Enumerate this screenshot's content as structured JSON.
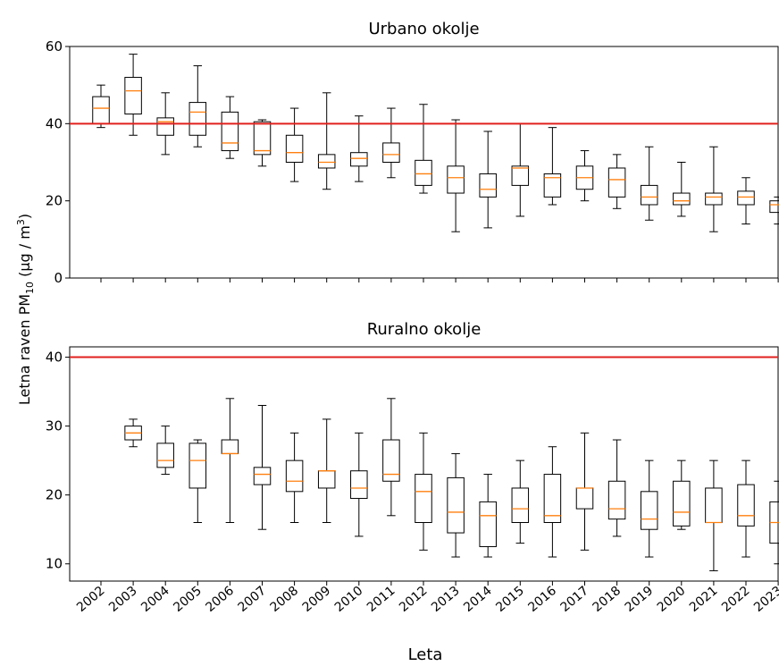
{
  "chart_data": [
    {
      "type": "box",
      "title": "Urbano okolje",
      "ylim": [
        0,
        60
      ],
      "yticks": [
        0,
        20,
        40,
        60
      ],
      "reference_line": {
        "value": 40,
        "color": "#e0201e"
      },
      "median_color": "#ff7f0e",
      "years": [
        "2002",
        "2003",
        "2004",
        "2005",
        "2006",
        "2007",
        "2008",
        "2009",
        "2010",
        "2011",
        "2012",
        "2013",
        "2014",
        "2015",
        "2016",
        "2017",
        "2018",
        "2019",
        "2020",
        "2021",
        "2022",
        "2023"
      ],
      "boxes": [
        {
          "year": "2002",
          "min": 39,
          "q1": 40,
          "median": 44,
          "q3": 47,
          "max": 50
        },
        {
          "year": "2003",
          "min": 37,
          "q1": 42.5,
          "median": 48.5,
          "q3": 52,
          "max": 58
        },
        {
          "year": "2004",
          "min": 32,
          "q1": 37,
          "median": 40.5,
          "q3": 41.5,
          "max": 48
        },
        {
          "year": "2005",
          "min": 34,
          "q1": 37,
          "median": 43,
          "q3": 45.5,
          "max": 55
        },
        {
          "year": "2006",
          "min": 31,
          "q1": 33,
          "median": 35,
          "q3": 43,
          "max": 47
        },
        {
          "year": "2007",
          "min": 29,
          "q1": 32,
          "median": 33,
          "q3": 40.5,
          "max": 41
        },
        {
          "year": "2008",
          "min": 25,
          "q1": 30,
          "median": 32.5,
          "q3": 37,
          "max": 44
        },
        {
          "year": "2009",
          "min": 23,
          "q1": 28.5,
          "median": 30,
          "q3": 32,
          "max": 48
        },
        {
          "year": "2010",
          "min": 25,
          "q1": 29,
          "median": 31,
          "q3": 32.5,
          "max": 42
        },
        {
          "year": "2011",
          "min": 26,
          "q1": 30,
          "median": 32,
          "q3": 35,
          "max": 44
        },
        {
          "year": "2012",
          "min": 22,
          "q1": 24,
          "median": 27,
          "q3": 30.5,
          "max": 45
        },
        {
          "year": "2013",
          "min": 12,
          "q1": 22,
          "median": 26,
          "q3": 29,
          "max": 41
        },
        {
          "year": "2014",
          "min": 13,
          "q1": 21,
          "median": 23,
          "q3": 27,
          "max": 38
        },
        {
          "year": "2015",
          "min": 16,
          "q1": 24,
          "median": 28.5,
          "q3": 29,
          "max": 40
        },
        {
          "year": "2016",
          "min": 19,
          "q1": 21,
          "median": 26,
          "q3": 27,
          "max": 39
        },
        {
          "year": "2017",
          "min": 20,
          "q1": 23,
          "median": 26,
          "q3": 29,
          "max": 33
        },
        {
          "year": "2018",
          "min": 18,
          "q1": 21,
          "median": 25.5,
          "q3": 28.5,
          "max": 32
        },
        {
          "year": "2019",
          "min": 15,
          "q1": 19,
          "median": 21,
          "q3": 24,
          "max": 34
        },
        {
          "year": "2020",
          "min": 16,
          "q1": 19,
          "median": 20,
          "q3": 22,
          "max": 30
        },
        {
          "year": "2021",
          "min": 12,
          "q1": 19,
          "median": 21,
          "q3": 22,
          "max": 34
        },
        {
          "year": "2022",
          "min": 14,
          "q1": 19,
          "median": 21,
          "q3": 22.5,
          "max": 26
        },
        {
          "year": "2023",
          "min": 14,
          "q1": 17,
          "median": 19,
          "q3": 20,
          "max": 21
        }
      ]
    },
    {
      "type": "box",
      "title": "Ruralno okolje",
      "ylim": [
        7.5,
        41.5
      ],
      "yticks": [
        10,
        20,
        30,
        40
      ],
      "reference_line": {
        "value": 40,
        "color": "#e0201e"
      },
      "median_color": "#ff7f0e",
      "years": [
        "2002",
        "2003",
        "2004",
        "2005",
        "2006",
        "2007",
        "2008",
        "2009",
        "2010",
        "2011",
        "2012",
        "2013",
        "2014",
        "2015",
        "2016",
        "2017",
        "2018",
        "2019",
        "2020",
        "2021",
        "2022",
        "2023"
      ],
      "boxes": [
        {
          "year": "2003",
          "min": 27,
          "q1": 28,
          "median": 29,
          "q3": 30,
          "max": 31
        },
        {
          "year": "2004",
          "min": 23,
          "q1": 24,
          "median": 25,
          "q3": 27.5,
          "max": 30
        },
        {
          "year": "2005",
          "min": 16,
          "q1": 21,
          "median": 25,
          "q3": 27.5,
          "max": 28
        },
        {
          "year": "2006",
          "min": 16,
          "q1": 26,
          "median": 26,
          "q3": 28,
          "max": 34
        },
        {
          "year": "2007",
          "min": 15,
          "q1": 21.5,
          "median": 23,
          "q3": 24,
          "max": 33
        },
        {
          "year": "2008",
          "min": 16,
          "q1": 20.5,
          "median": 22,
          "q3": 25,
          "max": 29
        },
        {
          "year": "2009",
          "min": 16,
          "q1": 21,
          "median": 23.5,
          "q3": 23.5,
          "max": 31
        },
        {
          "year": "2010",
          "min": 14,
          "q1": 19.5,
          "median": 21,
          "q3": 23.5,
          "max": 29
        },
        {
          "year": "2011",
          "min": 17,
          "q1": 22,
          "median": 23,
          "q3": 28,
          "max": 34
        },
        {
          "year": "2012",
          "min": 12,
          "q1": 16,
          "median": 20.5,
          "q3": 23,
          "max": 29
        },
        {
          "year": "2013",
          "min": 11,
          "q1": 14.5,
          "median": 17.5,
          "q3": 22.5,
          "max": 26
        },
        {
          "year": "2014",
          "min": 11,
          "q1": 12.5,
          "median": 17,
          "q3": 19,
          "max": 23
        },
        {
          "year": "2015",
          "min": 13,
          "q1": 16,
          "median": 18,
          "q3": 21,
          "max": 25
        },
        {
          "year": "2016",
          "min": 11,
          "q1": 16,
          "median": 17,
          "q3": 23,
          "max": 27
        },
        {
          "year": "2017",
          "min": 12,
          "q1": 18,
          "median": 21,
          "q3": 21,
          "max": 29
        },
        {
          "year": "2018",
          "min": 14,
          "q1": 16.5,
          "median": 18,
          "q3": 22,
          "max": 28
        },
        {
          "year": "2019",
          "min": 11,
          "q1": 15,
          "median": 16.5,
          "q3": 20.5,
          "max": 25
        },
        {
          "year": "2020",
          "min": 15,
          "q1": 15.5,
          "median": 17.5,
          "q3": 22,
          "max": 25
        },
        {
          "year": "2021",
          "min": 9,
          "q1": 16,
          "median": 16,
          "q3": 21,
          "max": 25
        },
        {
          "year": "2022",
          "min": 11,
          "q1": 15.5,
          "median": 17,
          "q3": 21.5,
          "max": 25
        },
        {
          "year": "2023",
          "min": 10,
          "q1": 13,
          "median": 16,
          "q3": 19,
          "max": 22
        }
      ]
    }
  ],
  "labels": {
    "xlabel": "Leta",
    "ylabel_main": "Letna raven PM",
    "ylabel_sub": "10",
    "ylabel_unit": " (μg / m",
    "ylabel_sup": "3",
    "ylabel_close": ")"
  }
}
